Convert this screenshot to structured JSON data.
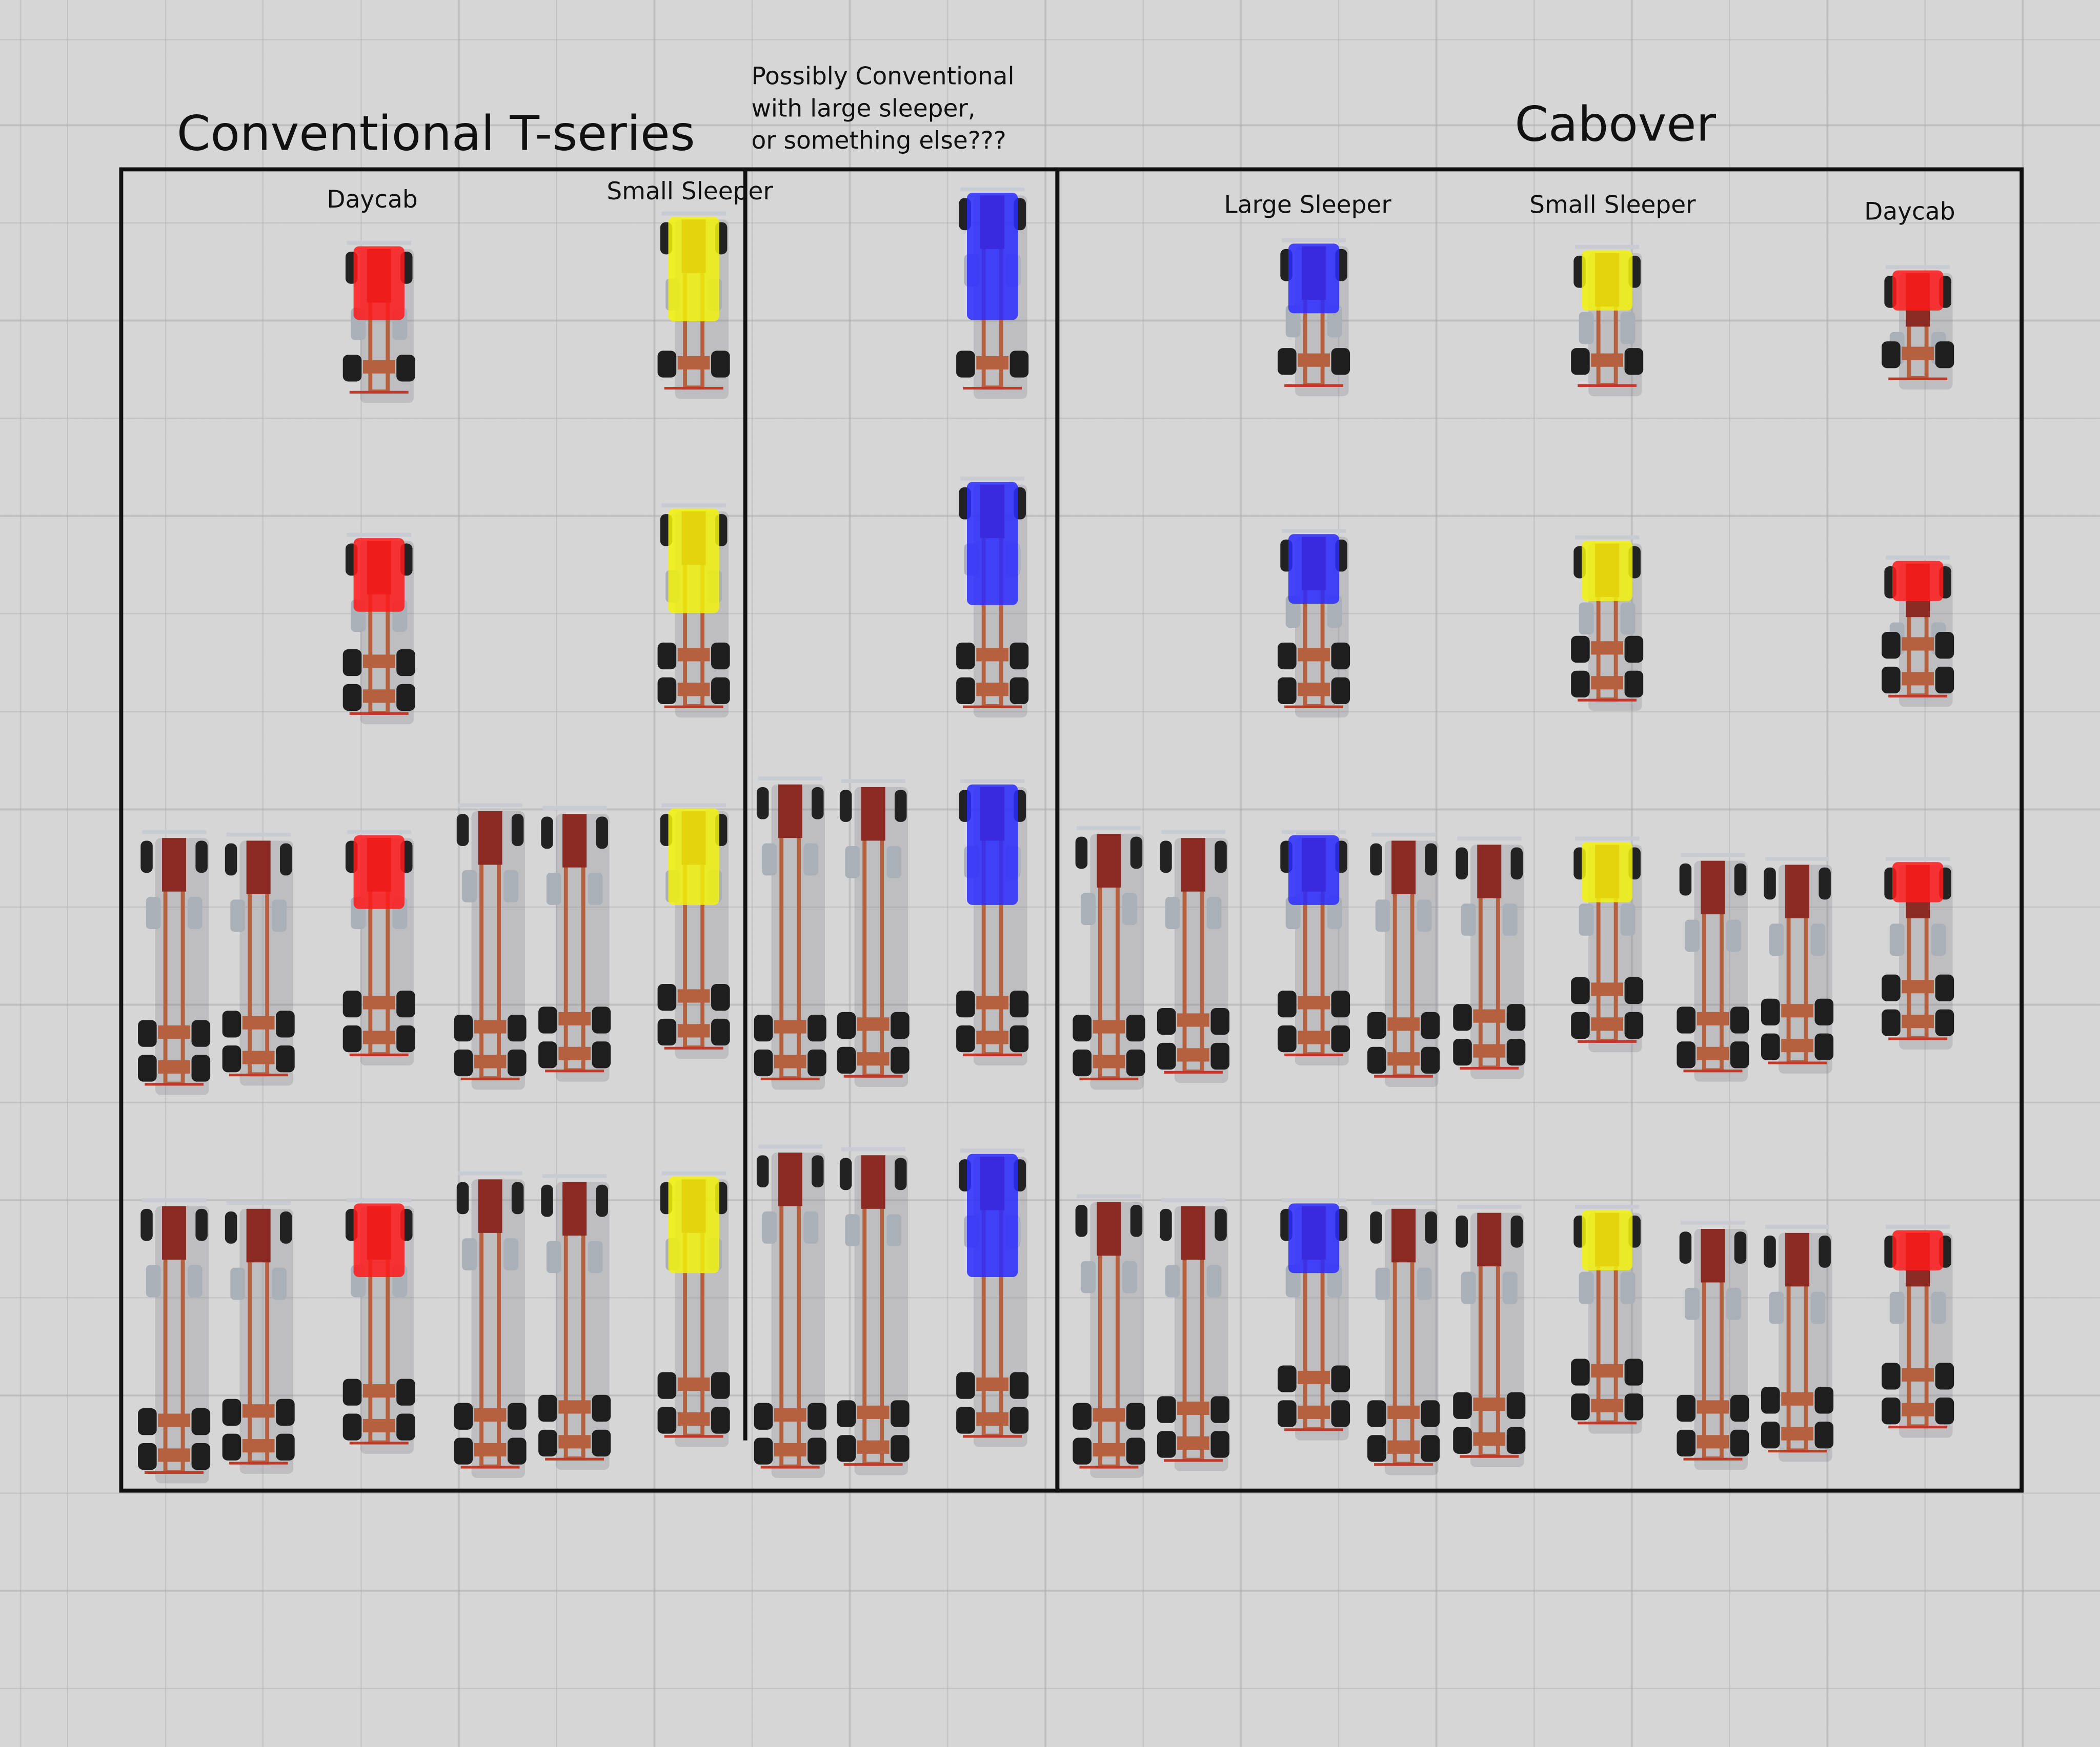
{
  "titles": {
    "conventional": "Conventional T-series",
    "cabover": "Cabover",
    "note": [
      "Possibly Conventional",
      "with large sleeper,",
      "or something else???"
    ]
  },
  "column_labels": {
    "conv_daycab": "Daycab",
    "conv_small_sleeper": "Small Sleeper",
    "cab_large_sleeper": "Large Sleeper",
    "cab_small_sleeper": "Small Sleeper",
    "cab_daycab": "Daycab"
  },
  "colors": {
    "daycab": "#ff1a1a",
    "small_sleeper": "#f2f20a",
    "large_sleeper": "#2a2aff",
    "frame": "#b5603f",
    "box_outline": "#111111"
  }
}
